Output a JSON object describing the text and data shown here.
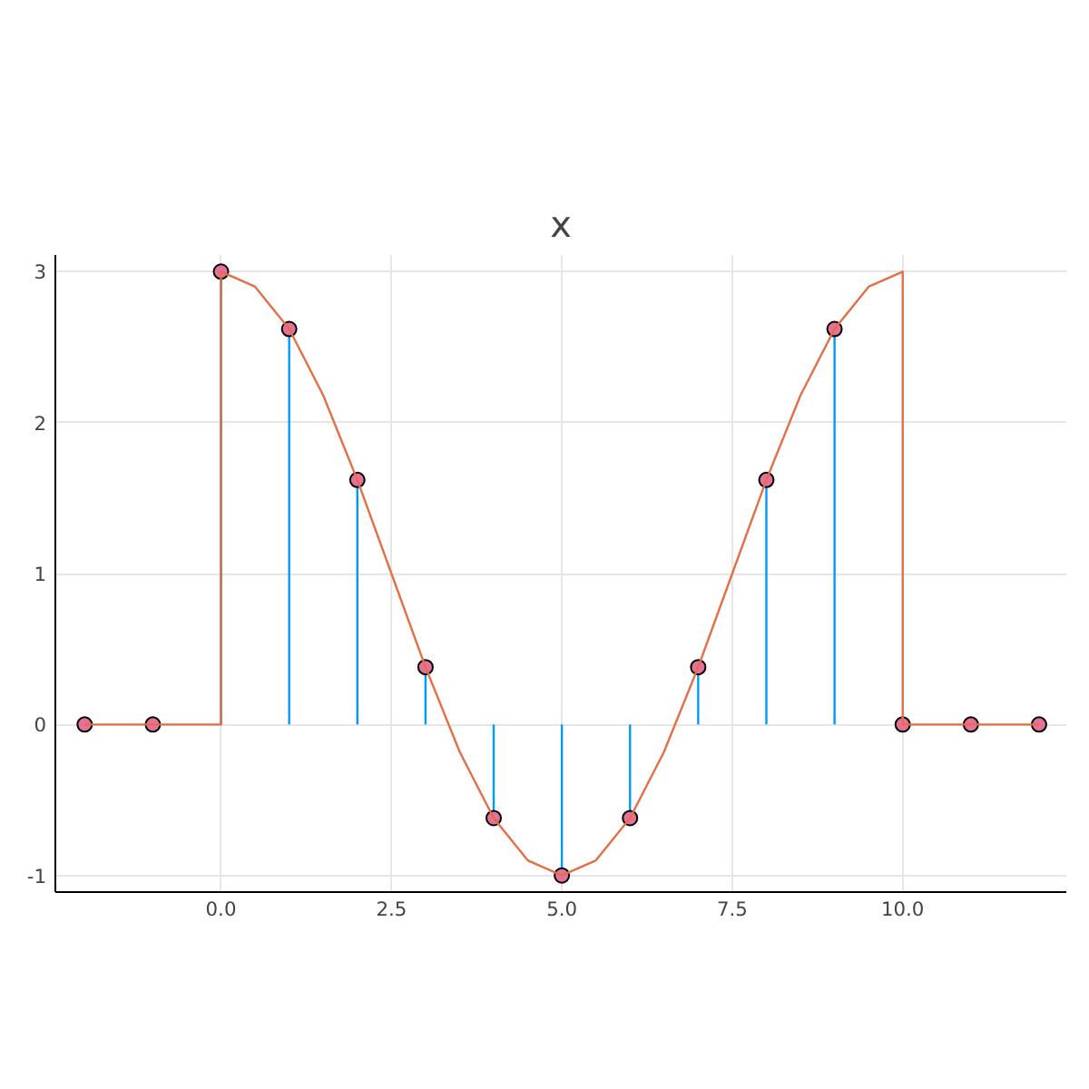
{
  "chart_data": {
    "type": "lollipop",
    "title": "x",
    "x": [
      -2,
      -1,
      0,
      1,
      2,
      3,
      4,
      5,
      6,
      7,
      8,
      9,
      10,
      11,
      12
    ],
    "series": [
      {
        "color": "#009af9",
        "colors": [
          "#e3719b",
          "#e3719b",
          "#e3719b",
          "#e3719b",
          "#e3719b",
          "#e3719b",
          "#e3719b",
          "#e3719b",
          "#e3719b",
          "#e3719b",
          "#e3719b",
          "#e3719b",
          "#e3719b",
          "#e3719b",
          "#e3719b"
        ],
        "marker": "circle",
        "values": [
          0,
          0,
          3,
          2.62,
          1.62,
          0.38,
          -0.62,
          -1,
          -0.62,
          0.38,
          1.62,
          2.62,
          0,
          0,
          0
        ]
      },
      {
        "type": "line",
        "color": "#e36f47",
        "x": [
          -2,
          0,
          0,
          0.5,
          1,
          1.5,
          2,
          2.5,
          3,
          3.5,
          4,
          4.5,
          5,
          5.5,
          6,
          6.5,
          7,
          7.5,
          8,
          8.5,
          9,
          9.5,
          10,
          10,
          12
        ],
        "values": [
          0,
          0,
          3,
          2.9,
          2.62,
          2.18,
          1.62,
          1,
          0.38,
          -0.18,
          -0.62,
          -0.9,
          -1,
          -0.9,
          -0.62,
          -0.18,
          0.38,
          1,
          1.62,
          2.18,
          2.62,
          2.9,
          3,
          0,
          0
        ]
      }
    ],
    "xlim": [
      -2.43,
      12.4
    ],
    "ylim": [
      -1.11,
      3.11
    ],
    "xticks": [
      {
        "value": 0,
        "label": "0.0"
      },
      {
        "value": 2.5,
        "label": "2.5"
      },
      {
        "value": 5,
        "label": "5.0"
      },
      {
        "value": 7.5,
        "label": "7.5"
      },
      {
        "value": 10,
        "label": "10.0"
      }
    ],
    "yticks": [
      -1,
      0,
      1,
      2,
      3
    ],
    "grid": true
  }
}
